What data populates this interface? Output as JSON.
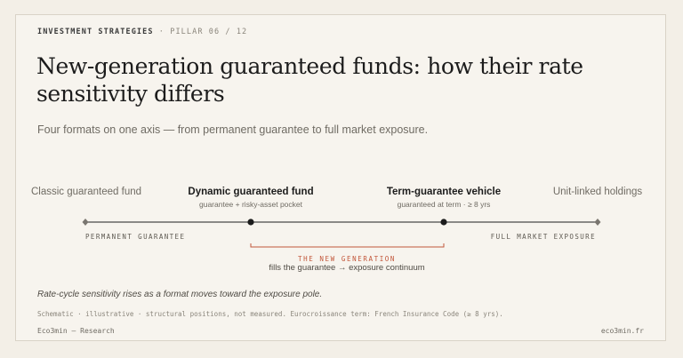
{
  "header": {
    "category": "INVESTMENT STRATEGIES",
    "separator": "·",
    "pillar": "PILLAR 06 / 12"
  },
  "title": "New-generation guaranteed funds: how their rate sensitivity differs",
  "subtitle": "Four formats on one axis — from permanent guarantee to full market exposure.",
  "formats": [
    {
      "label": "Classic guaranteed fund",
      "detail": "",
      "emphasis": false
    },
    {
      "label": "Dynamic guaranteed fund",
      "detail": "guarantee + risky-asset pocket",
      "emphasis": true
    },
    {
      "label": "Term-guarantee vehicle",
      "detail": "guaranteed at term · ≥ 8 yrs",
      "emphasis": true
    },
    {
      "label": "Unit-linked holdings",
      "detail": "",
      "emphasis": false
    }
  ],
  "axis": {
    "left_pole": "PERMANENT GUARANTEE",
    "right_pole": "FULL MARKET EXPOSURE"
  },
  "new_generation": {
    "title": "THE NEW GENERATION",
    "description": "fills the guarantee → exposure continuum"
  },
  "caption": "Rate-cycle sensitivity rises as a format moves toward the exposure pole.",
  "note": "Schematic · illustrative · structural positions, not measured. Eurocroissance term: French Insurance Code (≥ 8 yrs).",
  "footer": {
    "left": "Eco3min — Research",
    "right": "eco3min.fr"
  },
  "colors": {
    "background": "#f3efe7",
    "card": "#f7f4ee",
    "accent": "#c2563a",
    "ink": "#1c1c1c",
    "axis_line": "#4a4a4a",
    "pole_marker": "#7a7670"
  }
}
